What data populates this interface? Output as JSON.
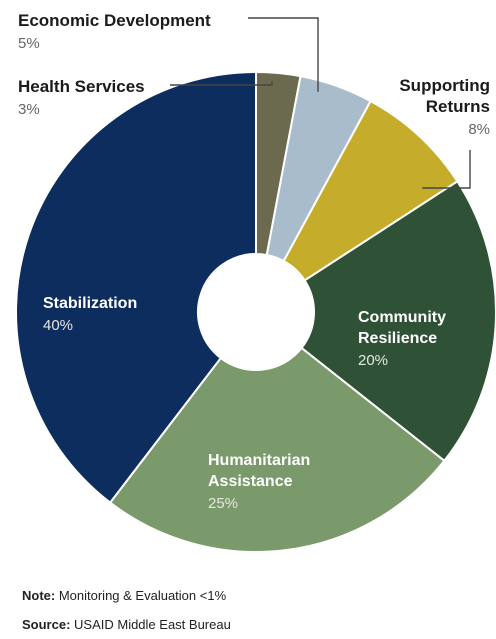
{
  "chart_data": {
    "type": "pie",
    "donut": true,
    "categories": [
      "Health Services",
      "Economic Development",
      "Supporting Returns",
      "Community Resilience",
      "Humanitarian Assistance",
      "Stabilization"
    ],
    "values": [
      3,
      5,
      8,
      20,
      25,
      40
    ],
    "colors": [
      "#6b6a4e",
      "#a9bccb",
      "#c5ad2b",
      "#2f5237",
      "#7b9a6b",
      "#0e2d5f"
    ],
    "percent_labels": [
      "3%",
      "5%",
      "8%",
      "20%",
      "25%",
      "40%"
    ],
    "label_lines": {
      "Health Services": [
        "Health Services"
      ],
      "Economic Development": [
        "Economic Development"
      ],
      "Supporting Returns": [
        "Supporting",
        "Returns"
      ],
      "Community Resilience": [
        "Community",
        "Resilience"
      ],
      "Humanitarian Assistance": [
        "Humanitarian",
        "Assistance"
      ],
      "Stabilization": [
        "Stabilization"
      ]
    }
  },
  "footer": {
    "note_label": "Note:",
    "note_text": " Monitoring & Evaluation <1%",
    "source_label": "Source:",
    "source_text": " USAID Middle East Bureau"
  }
}
